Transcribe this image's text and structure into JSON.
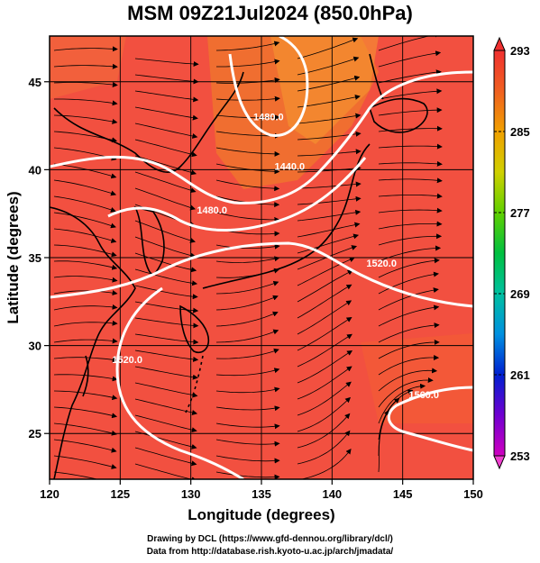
{
  "title": "MSM 09Z21Jul2024 (850.0hPa)",
  "map": {
    "lon_range": [
      120,
      150
    ],
    "lat_range": [
      22.4,
      47.6
    ],
    "x_ticks": [
      120,
      125,
      130,
      135,
      140,
      145,
      150
    ],
    "y_ticks": [
      25,
      30,
      35,
      40,
      45
    ],
    "xlabel": "Longitude (degrees)",
    "ylabel": "Latitude (degrees)",
    "grid": true,
    "field_color": "#f25040",
    "contour_color": "#ffffff",
    "contour_labels": [
      {
        "text": "1480.0",
        "lon": 135.5,
        "lat": 42.8
      },
      {
        "text": "1440.0",
        "lon": 137.0,
        "lat": 40.0
      },
      {
        "text": "1480.0",
        "lon": 131.5,
        "lat": 37.5
      },
      {
        "text": "1520.0",
        "lon": 143.5,
        "lat": 34.5
      },
      {
        "text": "1520.0",
        "lon": 125.5,
        "lat": 29.0
      },
      {
        "text": "1560.0",
        "lon": 146.5,
        "lat": 27.0
      }
    ]
  },
  "colorbar": {
    "ticks": [
      253,
      261,
      269,
      277,
      285,
      293
    ],
    "min": 253,
    "max": 293,
    "colors": [
      "#d000c0",
      "#7000d0",
      "#0020d0",
      "#0090e0",
      "#00c0a0",
      "#00c040",
      "#60d000",
      "#d0d000",
      "#f0a000",
      "#f06020",
      "#f03030"
    ]
  },
  "credits": {
    "line1": "Drawing by DCL (https://www.gfd-dennou.org/library/dcl/)",
    "line2": "Data from http://database.rish.kyoto-u.ac.jp/arch/jmadata/"
  }
}
